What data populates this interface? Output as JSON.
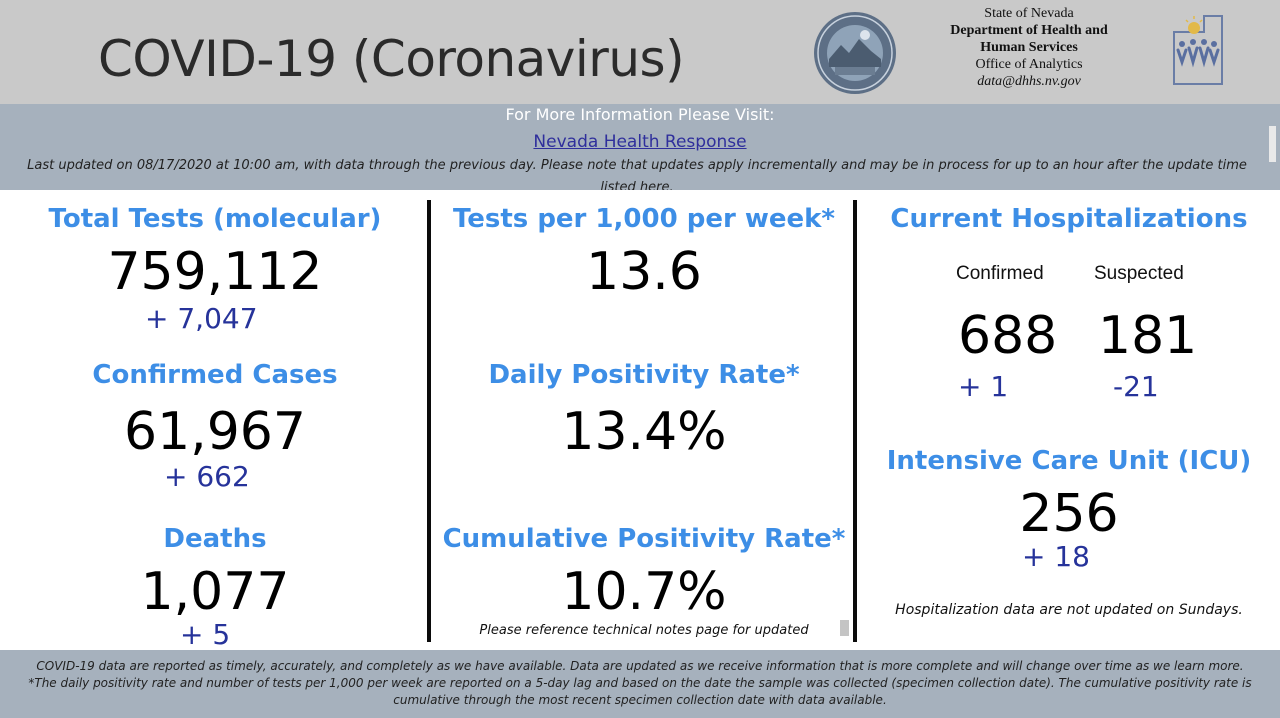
{
  "header": {
    "title": "COVID-19 (Coronavirus)",
    "agency": {
      "line1": "State of Nevada",
      "line2": "Department of Health and",
      "line3": "Human Services",
      "line4": "Office of Analytics",
      "email": "data@dhhs.nv.gov"
    },
    "seal_icon": "nevada-state-seal-icon",
    "logo_icon": "dhhs-logo-icon"
  },
  "info": {
    "label": "For More Information Please Visit:",
    "link_text": "Nevada Health Response",
    "updated": "Last updated on 08/17/2020 at 10:00 am, with data through the previous day.  Please note that updates apply incrementally and may be in process for up to an hour after the update time listed here."
  },
  "col1": {
    "tests_heading": "Total Tests (molecular)",
    "tests_value": "759,112",
    "tests_delta": "+ 7,047",
    "cases_heading": "Confirmed Cases",
    "cases_value": "61,967",
    "cases_delta": "+ 662",
    "deaths_heading": "Deaths",
    "deaths_value": "1,077",
    "deaths_delta": "+ 5"
  },
  "col2": {
    "tests_per_heading": "Tests per 1,000 per week*",
    "tests_per_value": "13.6",
    "daily_heading": "Daily Positivity Rate*",
    "daily_value": "13.4%",
    "cumulative_heading": "Cumulative Positivity Rate*",
    "cumulative_value": "10.7%",
    "note": "Please reference technical notes page for updated"
  },
  "col3": {
    "hosp_heading": "Current Hospitalizations",
    "confirmed_label": "Confirmed",
    "suspected_label": "Suspected",
    "confirmed_value": "688",
    "suspected_value": "181",
    "confirmed_delta": "+ 1",
    "suspected_delta": "-21",
    "icu_heading": "Intensive Care Unit (ICU)",
    "icu_value": "256",
    "icu_delta": "+ 18",
    "note": "Hospitalization data are not updated on Sundays."
  },
  "footer": {
    "line1": "COVID-19 data are reported as timely, accurately, and completely as we have available.  Data are updated as we receive information that is more complete and will change over time as we learn more.",
    "line2": "*The daily positivity rate and number of tests per 1,000 per week are reported on a 5-day lag and based on the date the sample was collected (specimen collection date).  The cumulative positivity rate is",
    "line3": "cumulative through the most recent specimen collection date with data available."
  }
}
